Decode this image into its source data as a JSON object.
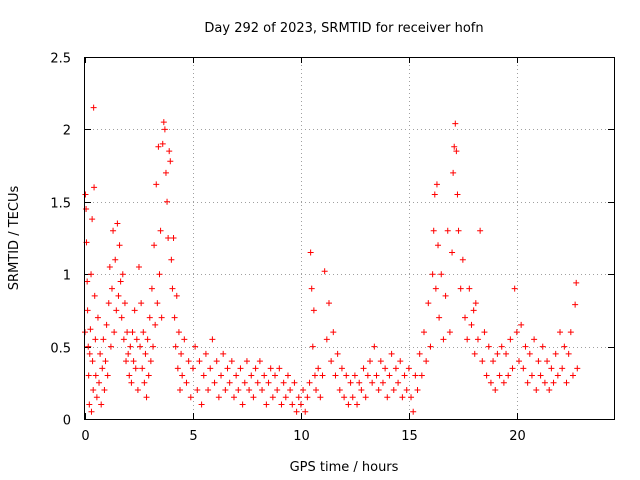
{
  "chart_data": {
    "type": "scatter",
    "title": "Day 292 of 2023, SRMTID for receiver hofn",
    "xlabel": "GPS time / hours",
    "ylabel": "SRMTID / TECUs",
    "xlim": [
      0,
      24.5
    ],
    "ylim": [
      0,
      2.5
    ],
    "xticks": [
      "0",
      "5",
      "10",
      "15",
      "20"
    ],
    "xtick_values": [
      0,
      5,
      10,
      15,
      20
    ],
    "yticks": [
      "0",
      "0.5",
      "1",
      "1.5",
      "2",
      "2.5"
    ],
    "ytick_values": [
      0,
      0.5,
      1,
      1.5,
      2,
      2.5
    ],
    "grid": true,
    "marker": "+",
    "color": "#ff0000",
    "series": [
      {
        "name": "SRMTID",
        "points": [
          [
            0.0,
            0.6
          ],
          [
            0.02,
            1.55
          ],
          [
            0.05,
            1.45
          ],
          [
            0.07,
            1.22
          ],
          [
            0.1,
            0.95
          ],
          [
            0.12,
            0.75
          ],
          [
            0.15,
            0.5
          ],
          [
            0.17,
            0.3
          ],
          [
            0.2,
            0.1
          ],
          [
            0.22,
            0.45
          ],
          [
            0.25,
            0.62
          ],
          [
            0.28,
            1.0
          ],
          [
            0.3,
            0.05
          ],
          [
            0.33,
            1.38
          ],
          [
            0.35,
            0.4
          ],
          [
            0.38,
            0.2
          ],
          [
            0.4,
            2.15
          ],
          [
            0.42,
            1.6
          ],
          [
            0.45,
            0.85
          ],
          [
            0.48,
            0.55
          ],
          [
            0.5,
            0.3
          ],
          [
            0.55,
            0.15
          ],
          [
            0.6,
            0.7
          ],
          [
            0.65,
            0.25
          ],
          [
            0.7,
            0.45
          ],
          [
            0.75,
            0.1
          ],
          [
            0.8,
            0.35
          ],
          [
            0.85,
            0.55
          ],
          [
            0.9,
            0.2
          ],
          [
            0.95,
            0.4
          ],
          [
            1.0,
            0.65
          ],
          [
            1.05,
            0.3
          ],
          [
            1.1,
            0.8
          ],
          [
            1.15,
            1.05
          ],
          [
            1.2,
            0.5
          ],
          [
            1.25,
            0.9
          ],
          [
            1.3,
            1.3
          ],
          [
            1.35,
            0.6
          ],
          [
            1.4,
            1.1
          ],
          [
            1.45,
            0.75
          ],
          [
            1.5,
            1.35
          ],
          [
            1.55,
            0.85
          ],
          [
            1.6,
            1.2
          ],
          [
            1.65,
            0.95
          ],
          [
            1.7,
            0.7
          ],
          [
            1.75,
            1.0
          ],
          [
            1.8,
            0.55
          ],
          [
            1.85,
            0.8
          ],
          [
            1.9,
            0.4
          ],
          [
            1.95,
            0.6
          ],
          [
            2.0,
            0.45
          ],
          [
            2.05,
            0.3
          ],
          [
            2.1,
            0.5
          ],
          [
            2.15,
            0.25
          ],
          [
            2.2,
            0.6
          ],
          [
            2.25,
            0.4
          ],
          [
            2.3,
            0.75
          ],
          [
            2.35,
            0.35
          ],
          [
            2.4,
            0.55
          ],
          [
            2.45,
            0.2
          ],
          [
            2.5,
            1.05
          ],
          [
            2.55,
            0.5
          ],
          [
            2.6,
            0.8
          ],
          [
            2.65,
            0.35
          ],
          [
            2.7,
            0.6
          ],
          [
            2.75,
            0.25
          ],
          [
            2.8,
            0.45
          ],
          [
            2.85,
            0.15
          ],
          [
            2.9,
            0.55
          ],
          [
            2.95,
            0.3
          ],
          [
            3.0,
            0.7
          ],
          [
            3.05,
            0.4
          ],
          [
            3.1,
            0.9
          ],
          [
            3.15,
            0.5
          ],
          [
            3.2,
            1.2
          ],
          [
            3.25,
            0.65
          ],
          [
            3.3,
            1.62
          ],
          [
            3.35,
            0.8
          ],
          [
            3.4,
            1.88
          ],
          [
            3.45,
            1.0
          ],
          [
            3.5,
            1.3
          ],
          [
            3.55,
            0.7
          ],
          [
            3.6,
            1.9
          ],
          [
            3.65,
            2.05
          ],
          [
            3.7,
            2.0
          ],
          [
            3.75,
            1.7
          ],
          [
            3.8,
            1.5
          ],
          [
            3.85,
            1.25
          ],
          [
            3.9,
            1.85
          ],
          [
            3.95,
            1.78
          ],
          [
            4.0,
            1.1
          ],
          [
            4.05,
            0.9
          ],
          [
            4.1,
            1.25
          ],
          [
            4.15,
            0.7
          ],
          [
            4.2,
            0.5
          ],
          [
            4.25,
            0.85
          ],
          [
            4.3,
            0.35
          ],
          [
            4.35,
            0.6
          ],
          [
            4.4,
            0.2
          ],
          [
            4.45,
            0.45
          ],
          [
            4.5,
            0.3
          ],
          [
            4.6,
            0.55
          ],
          [
            4.7,
            0.25
          ],
          [
            4.8,
            0.4
          ],
          [
            4.9,
            0.15
          ],
          [
            5.0,
            0.35
          ],
          [
            5.1,
            0.5
          ],
          [
            5.2,
            0.2
          ],
          [
            5.3,
            0.4
          ],
          [
            5.4,
            0.1
          ],
          [
            5.5,
            0.3
          ],
          [
            5.6,
            0.45
          ],
          [
            5.7,
            0.2
          ],
          [
            5.8,
            0.35
          ],
          [
            5.9,
            0.55
          ],
          [
            6.0,
            0.25
          ],
          [
            6.1,
            0.4
          ],
          [
            6.2,
            0.15
          ],
          [
            6.3,
            0.3
          ],
          [
            6.4,
            0.45
          ],
          [
            6.5,
            0.2
          ],
          [
            6.6,
            0.35
          ],
          [
            6.7,
            0.25
          ],
          [
            6.8,
            0.4
          ],
          [
            6.9,
            0.15
          ],
          [
            7.0,
            0.3
          ],
          [
            7.1,
            0.2
          ],
          [
            7.2,
            0.35
          ],
          [
            7.3,
            0.1
          ],
          [
            7.4,
            0.25
          ],
          [
            7.5,
            0.4
          ],
          [
            7.6,
            0.2
          ],
          [
            7.7,
            0.3
          ],
          [
            7.8,
            0.15
          ],
          [
            7.9,
            0.35
          ],
          [
            8.0,
            0.25
          ],
          [
            8.1,
            0.4
          ],
          [
            8.2,
            0.2
          ],
          [
            8.3,
            0.3
          ],
          [
            8.4,
            0.1
          ],
          [
            8.5,
            0.25
          ],
          [
            8.6,
            0.35
          ],
          [
            8.7,
            0.15
          ],
          [
            8.8,
            0.3
          ],
          [
            8.9,
            0.2
          ],
          [
            9.0,
            0.35
          ],
          [
            9.1,
            0.1
          ],
          [
            9.2,
            0.25
          ],
          [
            9.3,
            0.15
          ],
          [
            9.4,
            0.3
          ],
          [
            9.5,
            0.2
          ],
          [
            9.6,
            0.1
          ],
          [
            9.7,
            0.25
          ],
          [
            9.8,
            0.05
          ],
          [
            9.9,
            0.15
          ],
          [
            10.0,
            0.1
          ],
          [
            10.1,
            0.2
          ],
          [
            10.2,
            0.05
          ],
          [
            10.3,
            0.15
          ],
          [
            10.4,
            0.25
          ],
          [
            10.45,
            1.15
          ],
          [
            10.5,
            0.9
          ],
          [
            10.55,
            0.5
          ],
          [
            10.6,
            0.75
          ],
          [
            10.65,
            0.3
          ],
          [
            10.7,
            0.2
          ],
          [
            10.8,
            0.35
          ],
          [
            10.9,
            0.15
          ],
          [
            11.0,
            0.3
          ],
          [
            11.1,
            1.02
          ],
          [
            11.2,
            0.55
          ],
          [
            11.3,
            0.8
          ],
          [
            11.4,
            0.4
          ],
          [
            11.5,
            0.6
          ],
          [
            11.6,
            0.3
          ],
          [
            11.7,
            0.45
          ],
          [
            11.8,
            0.2
          ],
          [
            11.9,
            0.35
          ],
          [
            12.0,
            0.15
          ],
          [
            12.1,
            0.3
          ],
          [
            12.2,
            0.1
          ],
          [
            12.3,
            0.25
          ],
          [
            12.4,
            0.15
          ],
          [
            12.5,
            0.3
          ],
          [
            12.6,
            0.1
          ],
          [
            12.7,
            0.25
          ],
          [
            12.8,
            0.2
          ],
          [
            12.9,
            0.35
          ],
          [
            13.0,
            0.15
          ],
          [
            13.1,
            0.3
          ],
          [
            13.2,
            0.4
          ],
          [
            13.3,
            0.25
          ],
          [
            13.4,
            0.5
          ],
          [
            13.5,
            0.3
          ],
          [
            13.6,
            0.2
          ],
          [
            13.7,
            0.4
          ],
          [
            13.8,
            0.25
          ],
          [
            13.9,
            0.35
          ],
          [
            14.0,
            0.15
          ],
          [
            14.1,
            0.3
          ],
          [
            14.2,
            0.45
          ],
          [
            14.3,
            0.2
          ],
          [
            14.4,
            0.35
          ],
          [
            14.5,
            0.25
          ],
          [
            14.6,
            0.4
          ],
          [
            14.7,
            0.15
          ],
          [
            14.8,
            0.3
          ],
          [
            14.9,
            0.2
          ],
          [
            15.0,
            0.35
          ],
          [
            15.1,
            0.15
          ],
          [
            15.2,
            0.05
          ],
          [
            15.3,
            0.3
          ],
          [
            15.4,
            0.2
          ],
          [
            15.5,
            0.45
          ],
          [
            15.6,
            0.3
          ],
          [
            15.7,
            0.6
          ],
          [
            15.8,
            0.4
          ],
          [
            15.9,
            0.8
          ],
          [
            16.0,
            0.5
          ],
          [
            16.1,
            1.0
          ],
          [
            16.15,
            1.3
          ],
          [
            16.2,
            1.55
          ],
          [
            16.25,
            0.9
          ],
          [
            16.3,
            1.62
          ],
          [
            16.35,
            1.2
          ],
          [
            16.4,
            0.7
          ],
          [
            16.5,
            1.0
          ],
          [
            16.6,
            0.55
          ],
          [
            16.7,
            0.85
          ],
          [
            16.8,
            1.3
          ],
          [
            16.9,
            0.6
          ],
          [
            17.0,
            1.15
          ],
          [
            17.05,
            1.7
          ],
          [
            17.1,
            1.88
          ],
          [
            17.15,
            2.04
          ],
          [
            17.2,
            1.85
          ],
          [
            17.25,
            1.55
          ],
          [
            17.3,
            1.3
          ],
          [
            17.4,
            0.9
          ],
          [
            17.5,
            1.1
          ],
          [
            17.6,
            0.7
          ],
          [
            17.7,
            0.55
          ],
          [
            17.8,
            0.9
          ],
          [
            17.9,
            0.65
          ],
          [
            18.0,
            0.75
          ],
          [
            18.05,
            0.45
          ],
          [
            18.1,
            0.8
          ],
          [
            18.2,
            0.55
          ],
          [
            18.3,
            1.3
          ],
          [
            18.4,
            0.4
          ],
          [
            18.5,
            0.6
          ],
          [
            18.6,
            0.3
          ],
          [
            18.7,
            0.5
          ],
          [
            18.8,
            0.25
          ],
          [
            18.9,
            0.4
          ],
          [
            19.0,
            0.2
          ],
          [
            19.1,
            0.45
          ],
          [
            19.2,
            0.3
          ],
          [
            19.3,
            0.5
          ],
          [
            19.4,
            0.25
          ],
          [
            19.5,
            0.45
          ],
          [
            19.6,
            0.3
          ],
          [
            19.7,
            0.55
          ],
          [
            19.8,
            0.35
          ],
          [
            19.9,
            0.9
          ],
          [
            20.0,
            0.6
          ],
          [
            20.1,
            0.4
          ],
          [
            20.2,
            0.65
          ],
          [
            20.3,
            0.35
          ],
          [
            20.4,
            0.5
          ],
          [
            20.5,
            0.25
          ],
          [
            20.6,
            0.45
          ],
          [
            20.7,
            0.3
          ],
          [
            20.8,
            0.55
          ],
          [
            20.9,
            0.2
          ],
          [
            21.0,
            0.4
          ],
          [
            21.1,
            0.3
          ],
          [
            21.2,
            0.5
          ],
          [
            21.3,
            0.25
          ],
          [
            21.4,
            0.4
          ],
          [
            21.5,
            0.2
          ],
          [
            21.6,
            0.35
          ],
          [
            21.7,
            0.25
          ],
          [
            21.8,
            0.45
          ],
          [
            21.9,
            0.3
          ],
          [
            22.0,
            0.6
          ],
          [
            22.1,
            0.35
          ],
          [
            22.2,
            0.5
          ],
          [
            22.3,
            0.25
          ],
          [
            22.4,
            0.45
          ],
          [
            22.5,
            0.6
          ],
          [
            22.6,
            0.3
          ],
          [
            22.7,
            0.79
          ],
          [
            22.75,
            0.94
          ],
          [
            22.8,
            0.35
          ]
        ]
      }
    ]
  }
}
